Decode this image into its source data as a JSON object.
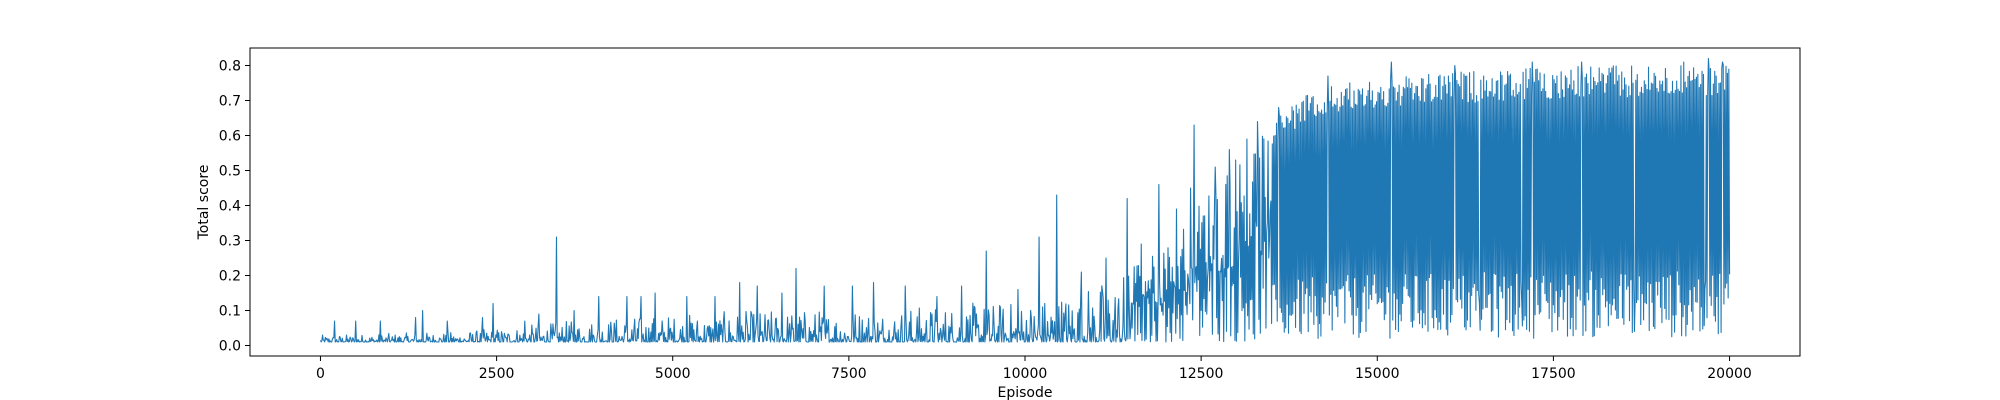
{
  "chart_data": {
    "type": "line",
    "title": "",
    "xlabel": "Episode",
    "ylabel": "Total score",
    "xlim": [
      -1000,
      21000
    ],
    "ylim": [
      -0.03,
      0.85
    ],
    "x_ticks": [
      0,
      2500,
      5000,
      7500,
      10000,
      12500,
      15000,
      17500,
      20000
    ],
    "x_tick_labels": [
      "0",
      "2500",
      "5000",
      "7500",
      "10000",
      "12500",
      "15000",
      "17500",
      "20000"
    ],
    "y_ticks": [
      0.0,
      0.1,
      0.2,
      0.3,
      0.4,
      0.5,
      0.6,
      0.7,
      0.8
    ],
    "y_tick_labels": [
      "0.0",
      "0.1",
      "0.2",
      "0.3",
      "0.4",
      "0.5",
      "0.6",
      "0.7",
      "0.8"
    ],
    "grid": false,
    "legend": "none",
    "series": [
      {
        "name": "",
        "color": "#1f77b4",
        "x_start": 0,
        "x_end": 20000,
        "envelope_x": [
          0,
          2000,
          4000,
          6000,
          8000,
          10000,
          11000,
          12000,
          12500,
          13000,
          13500,
          14000,
          14500,
          15000,
          16000,
          17000,
          18000,
          19000,
          20000
        ],
        "envelope_low": [
          0.01,
          0.01,
          0.01,
          0.01,
          0.01,
          0.01,
          0.01,
          0.01,
          0.01,
          0.01,
          0.02,
          0.02,
          0.02,
          0.02,
          0.02,
          0.02,
          0.02,
          0.02,
          0.03
        ],
        "envelope_high": [
          0.03,
          0.04,
          0.08,
          0.1,
          0.11,
          0.13,
          0.18,
          0.28,
          0.42,
          0.55,
          0.65,
          0.72,
          0.75,
          0.76,
          0.78,
          0.79,
          0.8,
          0.8,
          0.81
        ],
        "spikes": [
          {
            "x": 200,
            "y": 0.07
          },
          {
            "x": 500,
            "y": 0.07
          },
          {
            "x": 850,
            "y": 0.07
          },
          {
            "x": 1350,
            "y": 0.08
          },
          {
            "x": 1450,
            "y": 0.1
          },
          {
            "x": 1800,
            "y": 0.07
          },
          {
            "x": 2300,
            "y": 0.08
          },
          {
            "x": 2450,
            "y": 0.12
          },
          {
            "x": 2900,
            "y": 0.07
          },
          {
            "x": 3100,
            "y": 0.09
          },
          {
            "x": 3350,
            "y": 0.31
          },
          {
            "x": 3600,
            "y": 0.1
          },
          {
            "x": 3950,
            "y": 0.14
          },
          {
            "x": 4350,
            "y": 0.14
          },
          {
            "x": 4550,
            "y": 0.14
          },
          {
            "x": 4750,
            "y": 0.15
          },
          {
            "x": 5200,
            "y": 0.14
          },
          {
            "x": 5600,
            "y": 0.14
          },
          {
            "x": 5950,
            "y": 0.18
          },
          {
            "x": 6200,
            "y": 0.17
          },
          {
            "x": 6550,
            "y": 0.15
          },
          {
            "x": 6750,
            "y": 0.22
          },
          {
            "x": 7150,
            "y": 0.17
          },
          {
            "x": 7550,
            "y": 0.17
          },
          {
            "x": 7850,
            "y": 0.18
          },
          {
            "x": 8300,
            "y": 0.17
          },
          {
            "x": 8750,
            "y": 0.14
          },
          {
            "x": 9100,
            "y": 0.17
          },
          {
            "x": 9450,
            "y": 0.27
          },
          {
            "x": 9900,
            "y": 0.16
          },
          {
            "x": 10200,
            "y": 0.31
          },
          {
            "x": 10450,
            "y": 0.43
          },
          {
            "x": 10800,
            "y": 0.21
          },
          {
            "x": 11150,
            "y": 0.25
          },
          {
            "x": 11450,
            "y": 0.42
          },
          {
            "x": 11650,
            "y": 0.29
          },
          {
            "x": 11900,
            "y": 0.46
          },
          {
            "x": 12150,
            "y": 0.39
          },
          {
            "x": 12350,
            "y": 0.45
          },
          {
            "x": 12400,
            "y": 0.63
          },
          {
            "x": 12700,
            "y": 0.51
          },
          {
            "x": 12900,
            "y": 0.56
          },
          {
            "x": 13150,
            "y": 0.59
          },
          {
            "x": 13300,
            "y": 0.64
          },
          {
            "x": 13600,
            "y": 0.68
          },
          {
            "x": 14300,
            "y": 0.77
          },
          {
            "x": 15200,
            "y": 0.81
          },
          {
            "x": 16100,
            "y": 0.8
          },
          {
            "x": 17200,
            "y": 0.81
          },
          {
            "x": 17900,
            "y": 0.81
          },
          {
            "x": 19350,
            "y": 0.81
          },
          {
            "x": 19700,
            "y": 0.82
          },
          {
            "x": 19900,
            "y": 0.81
          }
        ],
        "dips": [
          {
            "x": 13700,
            "y": 0.05
          },
          {
            "x": 14100,
            "y": 0.06
          },
          {
            "x": 15300,
            "y": 0.04
          },
          {
            "x": 16000,
            "y": 0.03
          },
          {
            "x": 16450,
            "y": 0.12
          },
          {
            "x": 17050,
            "y": 0.13
          },
          {
            "x": 17800,
            "y": 0.2
          },
          {
            "x": 18650,
            "y": 0.04
          },
          {
            "x": 19400,
            "y": 0.06
          },
          {
            "x": 19650,
            "y": 0.16
          }
        ]
      }
    ]
  }
}
